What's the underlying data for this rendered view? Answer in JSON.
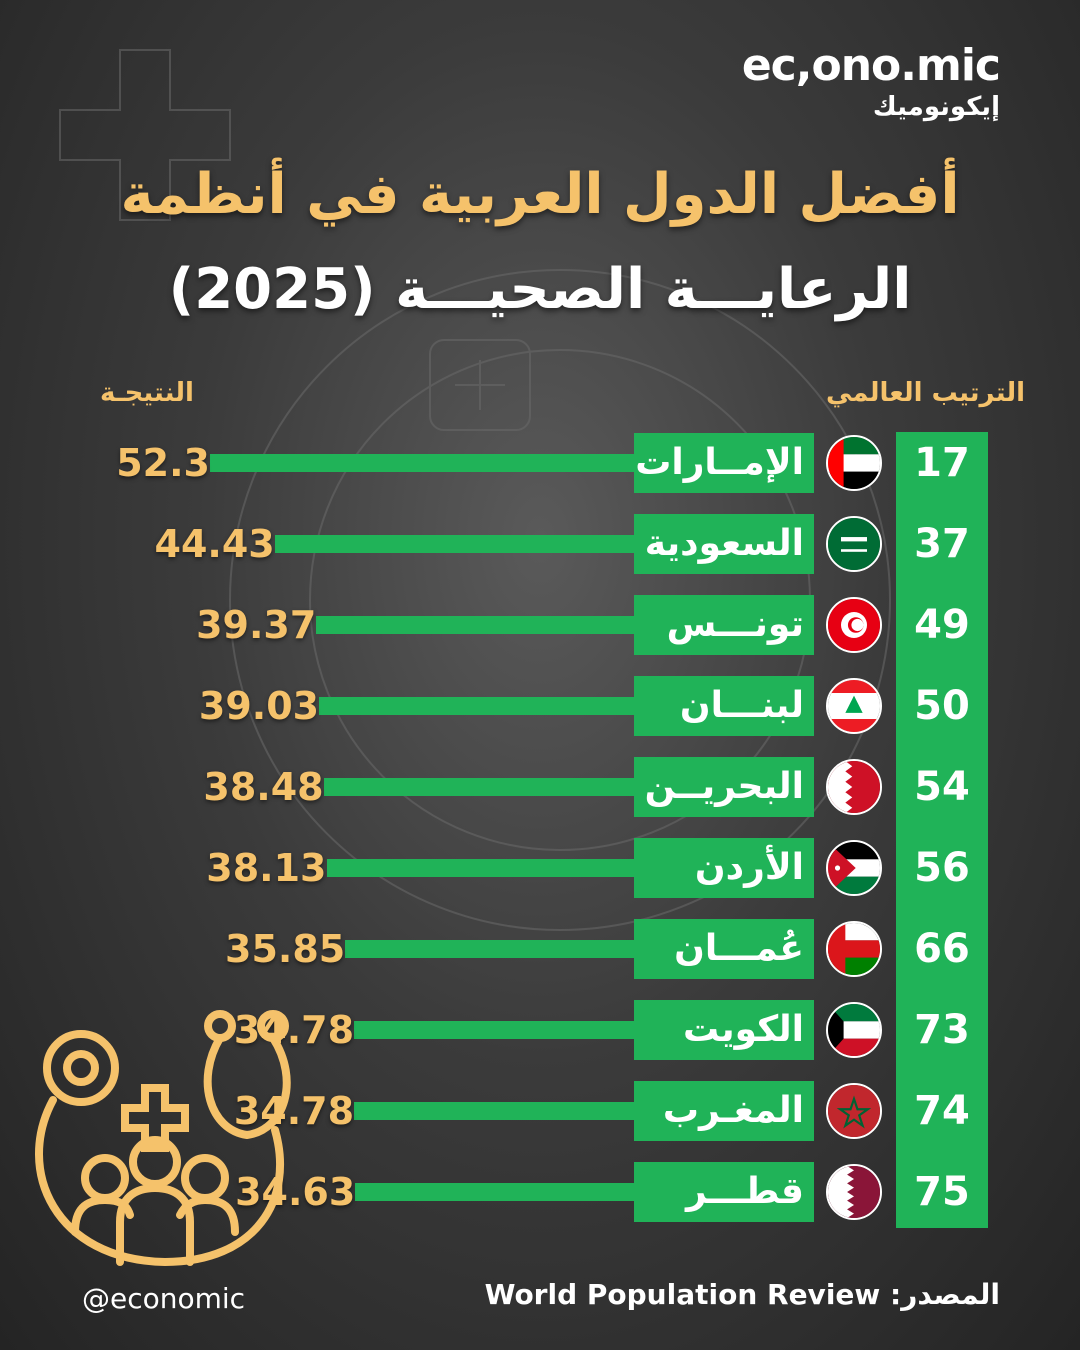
{
  "brand": {
    "name": "ec,ono.mic",
    "name_ar": "إيكونوميك"
  },
  "title_line1": "أفضل الدول العربية في أنظمة",
  "title_line2": "الرعايـــة الصحيـــة (2025)",
  "colors": {
    "accent": "#20b358",
    "score_text": "#f5c26b"
  },
  "chart_data": {
    "type": "bar",
    "orientation": "horizontal",
    "rank_header": "الترتيب العالمي",
    "score_header": "النتيجـة",
    "categories": [
      "الإمــارات",
      "السعودية",
      "تونـــس",
      "لبنـــان",
      "البحريــن",
      "الأردن",
      "عُمـــان",
      "الكويت",
      "المغـرب",
      "قطـــر"
    ],
    "values": [
      52.3,
      44.43,
      39.37,
      39.03,
      38.48,
      38.13,
      35.85,
      34.78,
      34.78,
      34.63
    ],
    "value_labels": [
      "52.3",
      "44.43",
      "39.37",
      "39.03",
      "38.48",
      "38.13",
      "35.85",
      "34.78",
      "34.78",
      "34.63"
    ],
    "ranks": [
      "17",
      "37",
      "49",
      "50",
      "54",
      "56",
      "66",
      "73",
      "74",
      "75"
    ],
    "flag_icons": [
      "uae-flag-icon",
      "saudi-flag-icon",
      "tunisia-flag-icon",
      "lebanon-flag-icon",
      "bahrain-flag-icon",
      "jordan-flag-icon",
      "oman-flag-icon",
      "kuwait-flag-icon",
      "morocco-flag-icon",
      "qatar-flag-icon"
    ]
  },
  "footer": {
    "handle": "@economic",
    "source_label": "المصدر:",
    "source_name": "World Population Review"
  },
  "decor_icon": "stethoscope-icon"
}
